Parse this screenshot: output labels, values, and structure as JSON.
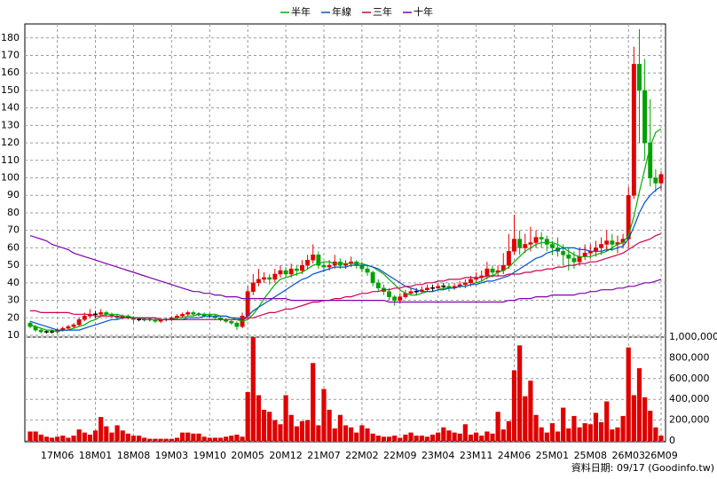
{
  "chart_data": {
    "type": "candlestick",
    "categories": [
      null,
      null,
      null,
      null,
      null,
      "17M06",
      null,
      null,
      null,
      null,
      null,
      null,
      "18M01",
      null,
      null,
      null,
      null,
      null,
      null,
      "18M08",
      null,
      null,
      null,
      null,
      null,
      null,
      "19M03",
      null,
      null,
      null,
      null,
      null,
      null,
      "19M10",
      null,
      null,
      null,
      null,
      null,
      null,
      "20M05",
      null,
      null,
      null,
      null,
      null,
      null,
      "20M12",
      null,
      null,
      null,
      null,
      null,
      null,
      "21M07",
      null,
      null,
      null,
      null,
      null,
      null,
      "22M02",
      null,
      null,
      null,
      null,
      null,
      null,
      "22M09",
      null,
      null,
      null,
      null,
      null,
      null,
      "23M04",
      null,
      null,
      null,
      null,
      null,
      null,
      "23M11",
      null,
      null,
      null,
      null,
      null,
      null,
      "24M06",
      null,
      null,
      null,
      null,
      null,
      null,
      "25M01",
      null,
      null,
      null,
      null,
      null,
      null,
      "25M08",
      null,
      null,
      null,
      null,
      null,
      null,
      "26M03",
      null,
      null,
      null,
      null,
      null,
      "26M09"
    ],
    "ohlc": {
      "up_color": "#e00000",
      "down_color": "#00a000",
      "flat_color": "#000000",
      "open": [
        17,
        15,
        13,
        12,
        12,
        12,
        13,
        14,
        15,
        16,
        19,
        21,
        22,
        22,
        23,
        22,
        21,
        20,
        21,
        20,
        19,
        19,
        19,
        19,
        18,
        19,
        19,
        20,
        21,
        22,
        23,
        22,
        22,
        21,
        21,
        20,
        19,
        18,
        17,
        15,
        21,
        35,
        40,
        42,
        43,
        42,
        45,
        47,
        45,
        48,
        47,
        50,
        53,
        56,
        50,
        49,
        50,
        52,
        50,
        51,
        52,
        50,
        48,
        46,
        40,
        37,
        35,
        32,
        30,
        32,
        34,
        35,
        35,
        36,
        37,
        37,
        38,
        38,
        37,
        38,
        39,
        40,
        42,
        43,
        44,
        48,
        46,
        47,
        50,
        58,
        65,
        60,
        62,
        63,
        66,
        65,
        62,
        60,
        58,
        56,
        54,
        52,
        55,
        57,
        58,
        60,
        62,
        64,
        62,
        63,
        65,
        90,
        165,
        150,
        120,
        100,
        97
      ],
      "high": [
        18,
        16,
        14,
        13,
        13,
        14,
        15,
        16,
        17,
        20,
        23,
        25,
        24,
        25,
        24,
        23,
        22,
        22,
        22,
        21,
        20,
        20,
        20,
        20,
        20,
        20,
        21,
        22,
        23,
        24,
        24,
        23,
        23,
        22,
        22,
        21,
        20,
        19,
        18,
        23,
        38,
        45,
        48,
        46,
        45,
        48,
        50,
        49,
        51,
        50,
        53,
        56,
        62,
        58,
        52,
        53,
        56,
        54,
        53,
        55,
        53,
        52,
        50,
        47,
        42,
        39,
        37,
        33,
        34,
        36,
        37,
        37,
        38,
        39,
        39,
        40,
        40,
        40,
        40,
        41,
        42,
        44,
        46,
        47,
        52,
        50,
        50,
        57,
        68,
        79,
        70,
        68,
        72,
        70,
        69,
        67,
        64,
        66,
        62,
        60,
        58,
        60,
        62,
        62,
        64,
        66,
        70,
        68,
        67,
        68,
        95,
        175,
        185,
        168,
        145,
        105,
        104
      ],
      "low": [
        14,
        12,
        11,
        11,
        11,
        11,
        12,
        13,
        14,
        15,
        18,
        20,
        20,
        21,
        21,
        20,
        19,
        19,
        19,
        17,
        18,
        18,
        18,
        17,
        17,
        18,
        18,
        19,
        20,
        21,
        21,
        21,
        20,
        20,
        19,
        18,
        17,
        16,
        13,
        14,
        20,
        33,
        38,
        40,
        39,
        40,
        43,
        43,
        43,
        44,
        45,
        48,
        51,
        48,
        46,
        47,
        48,
        48,
        48,
        49,
        48,
        46,
        44,
        38,
        35,
        33,
        30,
        27,
        28,
        31,
        33,
        33,
        34,
        35,
        35,
        36,
        36,
        35,
        36,
        37,
        37,
        38,
        40,
        41,
        42,
        43,
        44,
        45,
        48,
        56,
        56,
        57,
        58,
        60,
        60,
        58,
        56,
        55,
        50,
        47,
        48,
        50,
        53,
        54,
        55,
        56,
        58,
        58,
        57,
        60,
        60,
        88,
        120,
        110,
        95,
        92,
        93
      ],
      "close": [
        15,
        13,
        12,
        12,
        12,
        13,
        14,
        15,
        16,
        19,
        21,
        22,
        22,
        23,
        22,
        21,
        20,
        21,
        20,
        19,
        19,
        19,
        19,
        18,
        19,
        19,
        20,
        21,
        22,
        23,
        22,
        22,
        21,
        21,
        20,
        19,
        18,
        17,
        15,
        21,
        35,
        40,
        42,
        43,
        42,
        45,
        47,
        45,
        48,
        47,
        50,
        53,
        56,
        50,
        49,
        50,
        52,
        50,
        51,
        52,
        50,
        48,
        46,
        40,
        37,
        35,
        32,
        30,
        32,
        34,
        35,
        35,
        36,
        37,
        37,
        38,
        38,
        37,
        38,
        39,
        40,
        42,
        43,
        44,
        48,
        46,
        47,
        50,
        58,
        65,
        60,
        62,
        63,
        66,
        65,
        62,
        60,
        58,
        56,
        54,
        52,
        55,
        57,
        58,
        60,
        62,
        64,
        62,
        63,
        65,
        90,
        165,
        150,
        120,
        100,
        97,
        102
      ]
    },
    "series": [
      {
        "name": "半年",
        "color": "#00b000",
        "values": [
          16,
          15,
          14,
          13,
          13,
          12,
          13,
          13,
          14,
          15,
          16,
          18,
          19,
          21,
          22,
          22,
          22,
          21,
          21,
          20,
          20,
          19,
          19,
          19,
          19,
          19,
          19,
          20,
          20,
          21,
          21,
          22,
          22,
          22,
          22,
          21,
          21,
          20,
          19,
          18,
          19,
          22,
          26,
          31,
          35,
          39,
          42,
          43,
          44,
          45,
          46,
          48,
          50,
          51,
          52,
          52,
          51,
          51,
          51,
          51,
          51,
          51,
          50,
          49,
          47,
          45,
          42,
          39,
          36,
          34,
          33,
          33,
          34,
          35,
          35,
          36,
          37,
          37,
          37,
          38,
          38,
          39,
          40,
          41,
          43,
          44,
          46,
          47,
          49,
          52,
          55,
          58,
          60,
          62,
          63,
          63,
          63,
          62,
          60,
          58,
          56,
          55,
          55,
          55,
          56,
          57,
          58,
          60,
          62,
          63,
          67,
          78,
          92,
          105,
          118,
          126,
          128
        ]
      },
      {
        "name": "年線",
        "color": "#0050d0",
        "values": [
          18,
          17,
          16,
          15,
          14,
          13,
          13,
          13,
          13,
          13,
          14,
          15,
          16,
          17,
          18,
          19,
          19,
          20,
          20,
          20,
          20,
          20,
          20,
          20,
          19,
          19,
          19,
          19,
          19,
          20,
          20,
          20,
          21,
          21,
          21,
          21,
          21,
          20,
          20,
          19,
          21,
          24,
          26,
          28,
          30,
          32,
          34,
          36,
          38,
          40,
          42,
          43,
          45,
          46,
          47,
          48,
          49,
          49,
          49,
          50,
          50,
          50,
          50,
          49,
          48,
          46,
          44,
          42,
          40,
          38,
          37,
          36,
          35,
          35,
          35,
          36,
          36,
          37,
          37,
          38,
          38,
          39,
          39,
          40,
          41,
          41,
          42,
          43,
          44,
          46,
          48,
          50,
          52,
          54,
          55,
          57,
          58,
          59,
          60,
          60,
          60,
          59,
          59,
          58,
          58,
          58,
          59,
          59,
          60,
          61,
          65,
          72,
          80,
          86,
          90,
          93,
          95
        ]
      },
      {
        "name": "三年",
        "color": "#d00050",
        "values": [
          24,
          24,
          23,
          23,
          23,
          23,
          23,
          23,
          22,
          22,
          22,
          22,
          21,
          21,
          21,
          21,
          21,
          20,
          20,
          20,
          20,
          20,
          20,
          20,
          19,
          19,
          19,
          19,
          19,
          19,
          19,
          19,
          19,
          19,
          19,
          19,
          19,
          19,
          19,
          19,
          20,
          20,
          21,
          22,
          23,
          23,
          24,
          25,
          25,
          26,
          27,
          28,
          29,
          29,
          30,
          30,
          31,
          31,
          32,
          32,
          33,
          34,
          34,
          35,
          35,
          36,
          36,
          37,
          37,
          38,
          38,
          39,
          39,
          40,
          40,
          41,
          41,
          42,
          42,
          42,
          43,
          43,
          43,
          43,
          44,
          44,
          44,
          44,
          45,
          45,
          45,
          46,
          46,
          47,
          47,
          48,
          48,
          49,
          49,
          50,
          50,
          51,
          51,
          52,
          52,
          53,
          54,
          55,
          56,
          57,
          59,
          61,
          63,
          64,
          65,
          67,
          68
        ]
      },
      {
        "name": "十年",
        "color": "#8000b0",
        "values": [
          67,
          66,
          65,
          64,
          62,
          61,
          60,
          59,
          57,
          56,
          55,
          54,
          53,
          52,
          51,
          50,
          49,
          48,
          47,
          46,
          45,
          44,
          43,
          42,
          41,
          40,
          39,
          38,
          37,
          36,
          35,
          35,
          34,
          34,
          33,
          33,
          32,
          32,
          32,
          31,
          31,
          31,
          31,
          31,
          31,
          31,
          31,
          31,
          30,
          30,
          30,
          30,
          30,
          30,
          30,
          30,
          30,
          30,
          30,
          30,
          30,
          30,
          30,
          30,
          30,
          30,
          29,
          29,
          29,
          29,
          29,
          29,
          29,
          29,
          29,
          29,
          29,
          29,
          29,
          29,
          29,
          29,
          29,
          29,
          29,
          29,
          29,
          29,
          30,
          30,
          31,
          31,
          31,
          32,
          32,
          32,
          33,
          33,
          33,
          33,
          33,
          34,
          34,
          35,
          35,
          36,
          36,
          36,
          37,
          37,
          38,
          38,
          39,
          40,
          40,
          41,
          42
        ]
      }
    ],
    "ylim": [
      10,
      188
    ],
    "yticks": [
      10,
      20,
      30,
      40,
      50,
      60,
      70,
      80,
      90,
      100,
      110,
      120,
      130,
      140,
      150,
      160,
      170,
      180
    ],
    "volume": {
      "color": "#e00000",
      "values": [
        90000,
        90000,
        60000,
        40000,
        30000,
        40000,
        50000,
        30000,
        50000,
        110000,
        80000,
        60000,
        100000,
        230000,
        140000,
        80000,
        150000,
        100000,
        70000,
        50000,
        50000,
        30000,
        20000,
        20000,
        20000,
        20000,
        20000,
        30000,
        80000,
        80000,
        70000,
        70000,
        40000,
        30000,
        30000,
        30000,
        40000,
        50000,
        60000,
        40000,
        470000,
        1000000,
        440000,
        300000,
        280000,
        200000,
        160000,
        440000,
        250000,
        140000,
        190000,
        200000,
        750000,
        150000,
        500000,
        300000,
        120000,
        250000,
        150000,
        130000,
        80000,
        150000,
        120000,
        70000,
        50000,
        40000,
        40000,
        50000,
        30000,
        60000,
        80000,
        50000,
        50000,
        40000,
        60000,
        80000,
        130000,
        100000,
        80000,
        70000,
        160000,
        60000,
        80000,
        50000,
        90000,
        70000,
        280000,
        110000,
        190000,
        680000,
        920000,
        430000,
        580000,
        250000,
        130000,
        80000,
        170000,
        90000,
        320000,
        120000,
        240000,
        130000,
        170000,
        160000,
        270000,
        180000,
        380000,
        110000,
        130000,
        240000,
        900000,
        440000,
        700000,
        420000,
        290000,
        130000,
        50000
      ],
      "ylim": [
        0,
        1000000
      ],
      "yticks": [
        0,
        {
          "value": 200000,
          "label": "200,000"
        },
        {
          "value": 400000,
          "label": "400,000"
        },
        {
          "value": 600000,
          "label": "600,000"
        },
        {
          "value": 800000,
          "label": "800,000"
        },
        {
          "value": 1000000,
          "label": "1,000,000"
        }
      ]
    },
    "grid": true,
    "legend": "top",
    "source": "資料日期: 09/17 (Goodinfo.tw)"
  }
}
